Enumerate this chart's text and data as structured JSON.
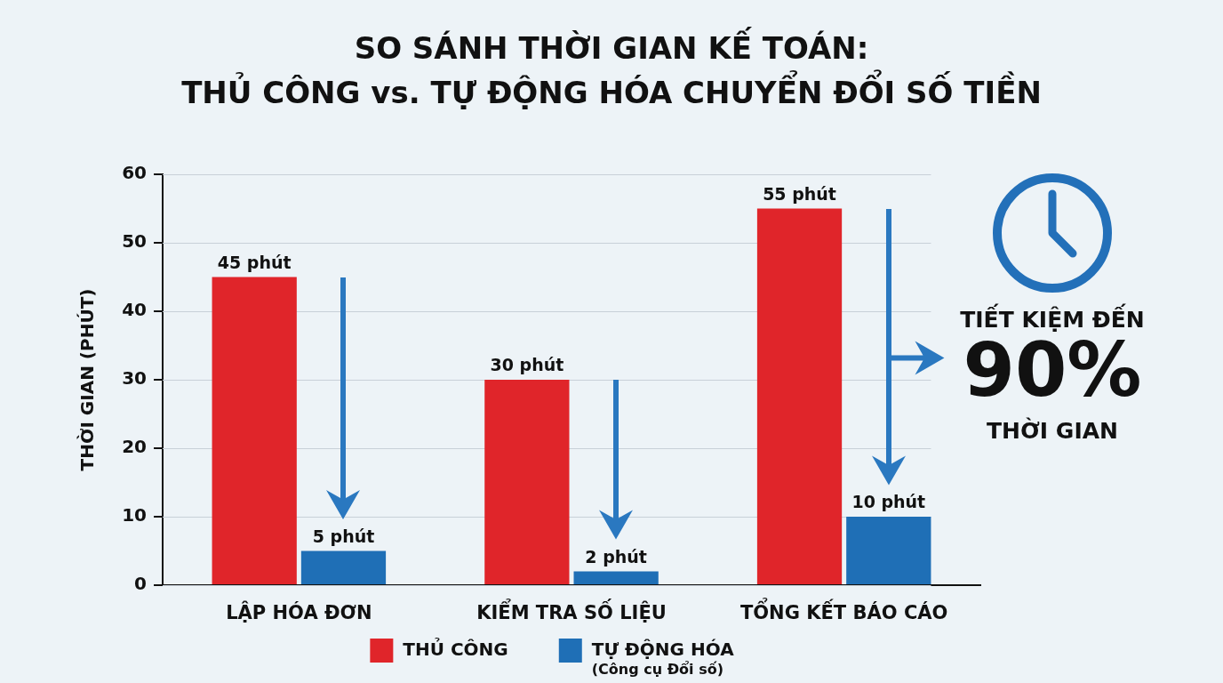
{
  "chart_data": {
    "type": "bar",
    "title": "SO SÁNH THỜI GIAN KẾ TOÁN:\nTHỦ CÔNG vs. TỰ ĐỘNG HÓA CHUYỂN ĐỔI SỐ TIỀN",
    "ylabel": "THỜI GIAN (PHÚT)",
    "categories": [
      "LẬP HÓA ĐƠN",
      "KIỂM TRA SỐ LIỆU",
      "TỔNG KẾT BÁO CÁO"
    ],
    "series": [
      {
        "name": "THỦ CÔNG",
        "color": "#e0252a",
        "values": [
          45,
          30,
          55
        ],
        "value_labels": [
          "45 phút",
          "30 phút",
          "55 phút"
        ]
      },
      {
        "name": "TỰ ĐỘNG HÓA\n(Công cụ Đổi số)",
        "color": "#1f6fb6",
        "values": [
          5,
          2,
          10
        ],
        "value_labels": [
          "5 phút",
          "2 phút",
          "10 phút"
        ]
      }
    ],
    "ylim": [
      0,
      60
    ],
    "yticks": [
      0,
      10,
      20,
      30,
      40,
      50,
      60
    ],
    "grid": "y",
    "legend": "bottom",
    "annotations": [
      "TIẾT KIỆM ĐẾN",
      "90%",
      "THỜI GIAN"
    ]
  }
}
